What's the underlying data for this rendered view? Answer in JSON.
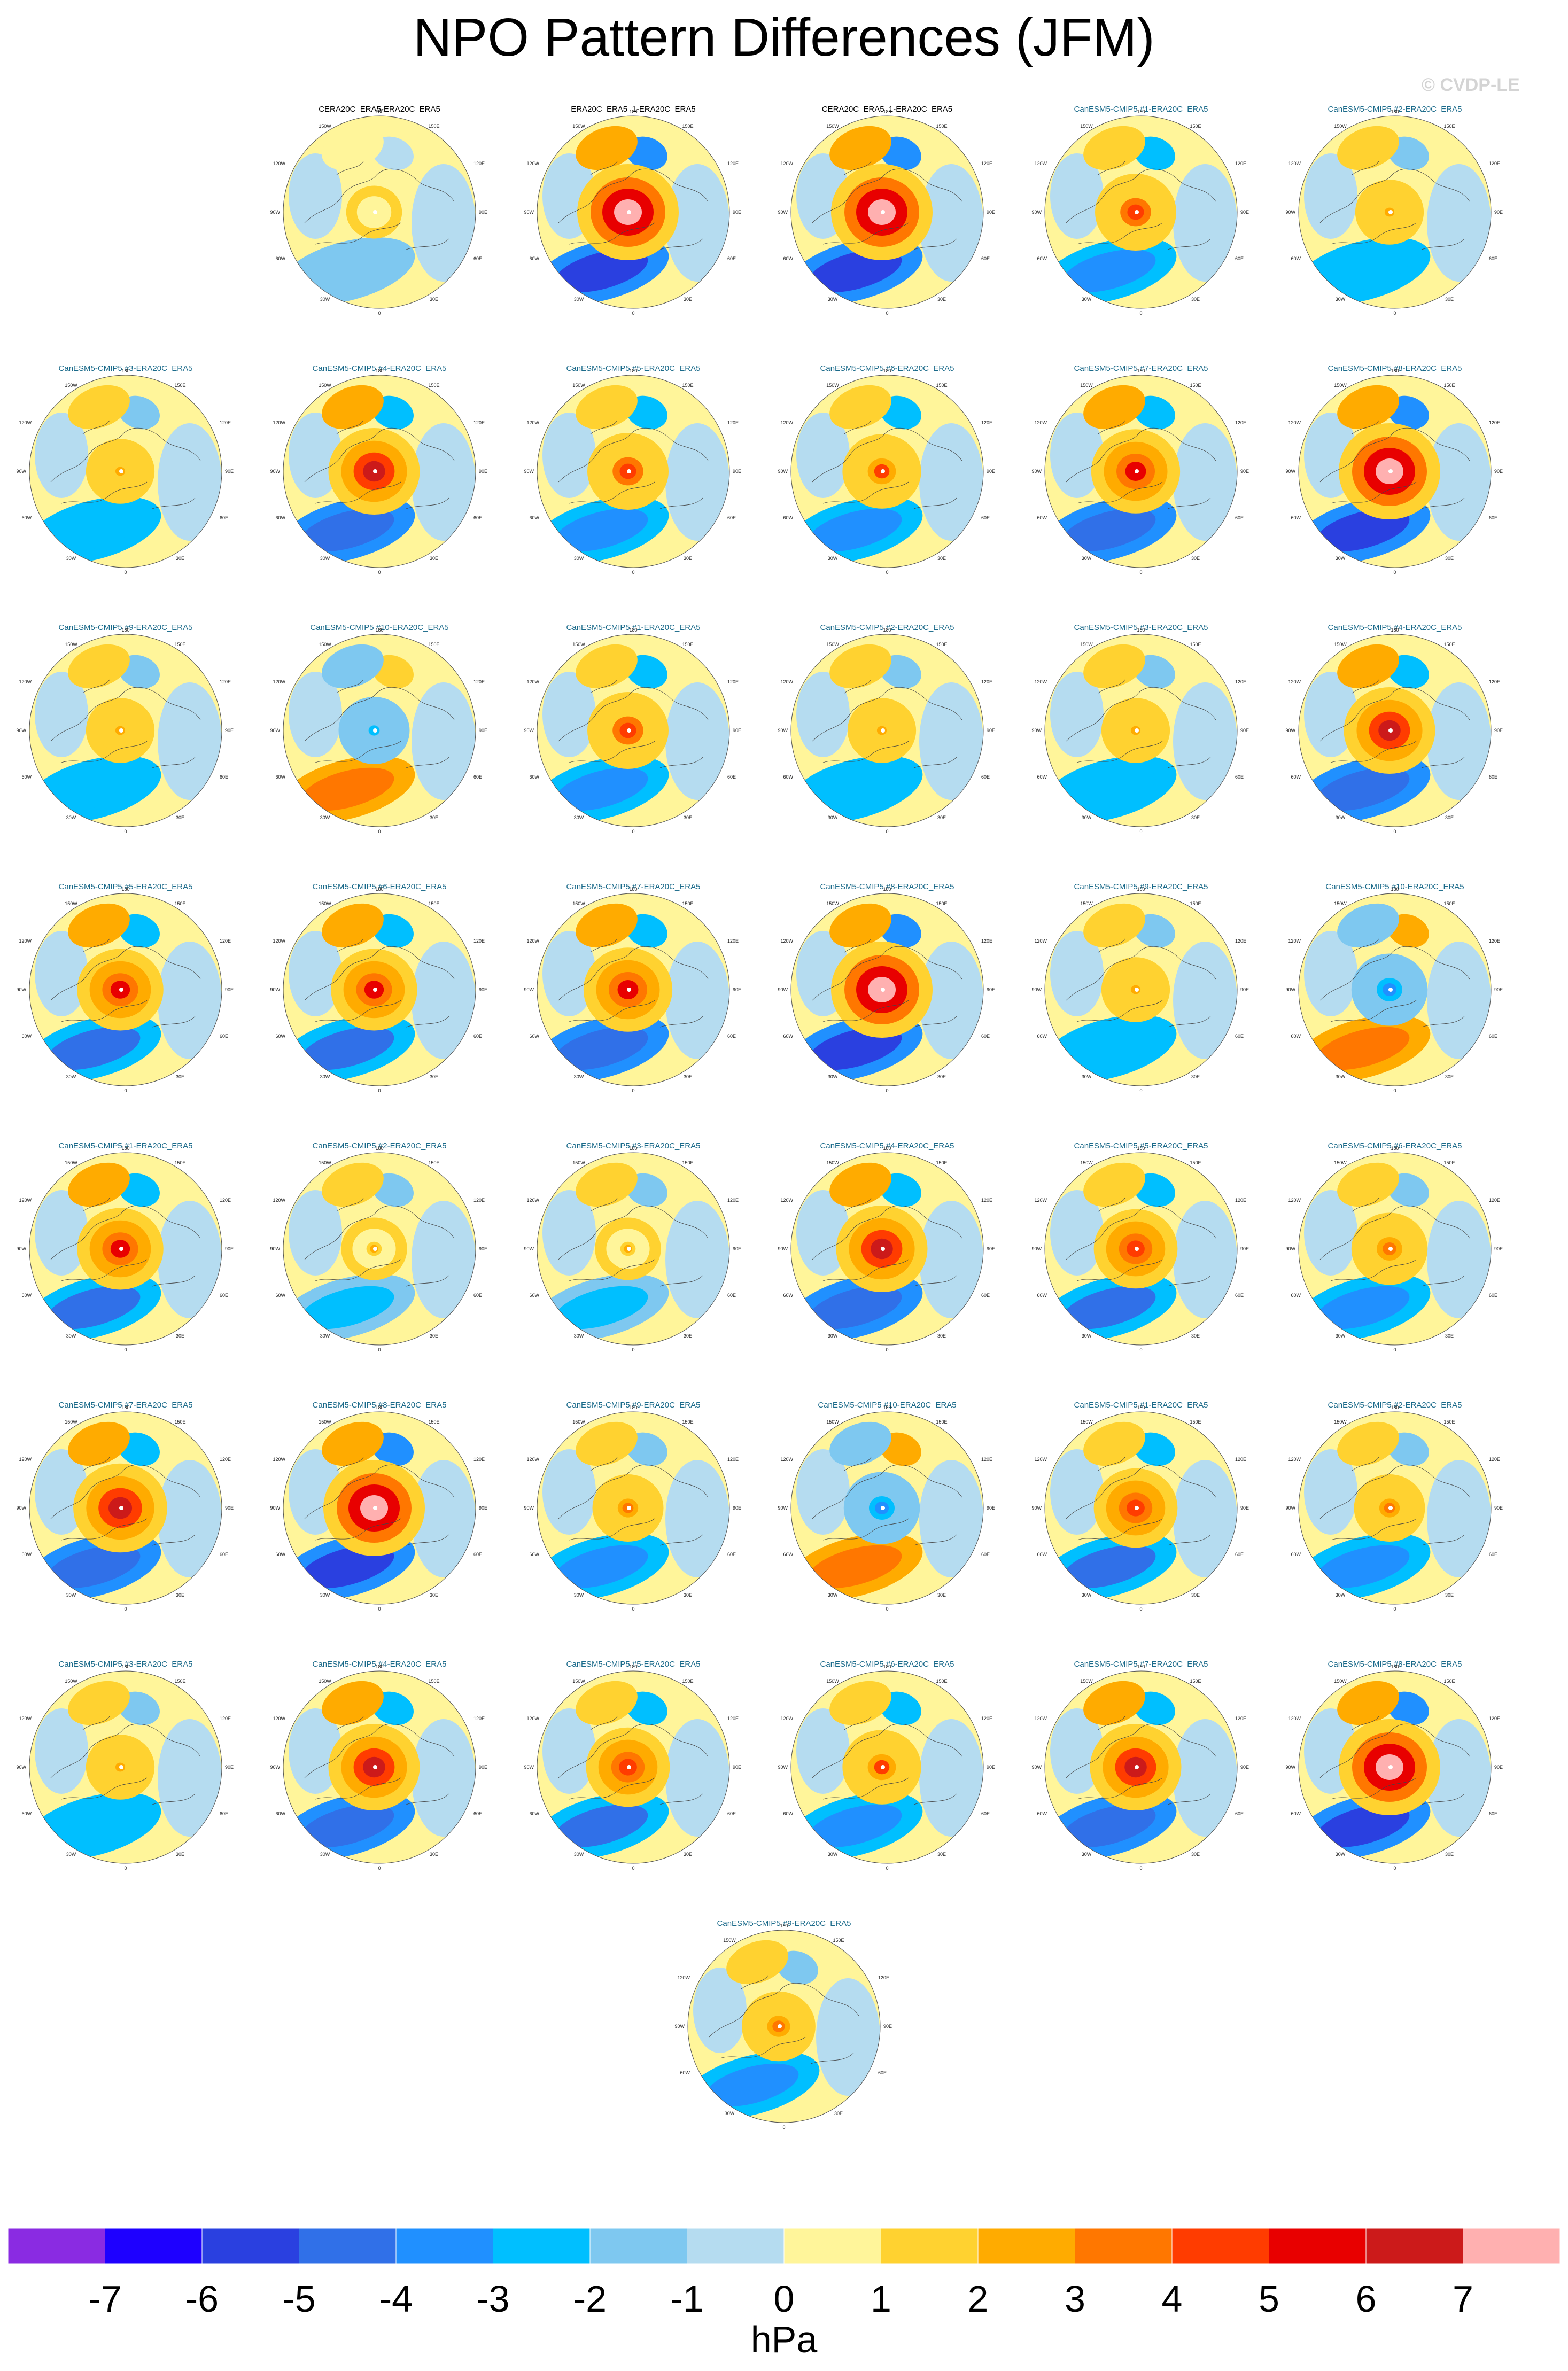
{
  "title": "NPO Pattern Differences (JFM)",
  "watermark": "© CVDP-LE",
  "colors": {
    "land_outline": "#444444",
    "reference_title": "#000000",
    "model_title": "#1a6a8a"
  },
  "chart_data": {
    "type": "heatmap",
    "projection": "polar stereographic (north pole)",
    "colorbar": {
      "ticks": [
        "-7",
        "-6",
        "-5",
        "-4",
        "-3",
        "-2",
        "-1",
        "0",
        "1",
        "2",
        "3",
        "4",
        "5",
        "6",
        "7"
      ],
      "units": "hPa",
      "colors": [
        "#8a2be2",
        "#1e00ff",
        "#2a40e0",
        "#3070e8",
        "#2090ff",
        "#00bfff",
        "#7ec8f0",
        "#b5dcf0",
        "#fff59a",
        "#ffd230",
        "#ffab00",
        "#ff7700",
        "#ff3c00",
        "#e80000",
        "#cc1a1a",
        "#ffb0b0"
      ]
    },
    "map_labels": {
      "top": "180",
      "top_left": "150W",
      "top_right": "150E",
      "upper_left": "120W",
      "upper_right": "120E",
      "left": "90W",
      "right": "90E",
      "lower_left": "60W",
      "lower_right": "60E",
      "bottom_left": "30W",
      "bottom_right": "30E",
      "bottom": "0"
    },
    "panels": [
      {
        "name": "CERA20C_ERA5-ERA20C_ERA5",
        "kind": "reference",
        "intensity": 0.1
      },
      {
        "name": "ERA20C_ERA5_1-ERA20C_ERA5",
        "kind": "reference",
        "intensity": 1.0
      },
      {
        "name": "CERA20C_ERA5_1-ERA20C_ERA5",
        "kind": "reference",
        "intensity": 1.0
      },
      {
        "name": "CanESM5-CMIP5 #1-ERA20C_ERA5",
        "kind": "model",
        "intensity": 0.6
      },
      {
        "name": "CanESM5-CMIP5 #2-ERA20C_ERA5",
        "kind": "model",
        "intensity": 0.35
      },
      {
        "name": "CanESM5-CMIP5 #3-ERA20C_ERA5",
        "kind": "model",
        "intensity": 0.35
      },
      {
        "name": "CanESM5-CMIP5 #4-ERA20C_ERA5",
        "kind": "model",
        "intensity": 0.8
      },
      {
        "name": "CanESM5-CMIP5 #5-ERA20C_ERA5",
        "kind": "model",
        "intensity": 0.6
      },
      {
        "name": "CanESM5-CMIP5 #6-ERA20C_ERA5",
        "kind": "model",
        "intensity": 0.55
      },
      {
        "name": "CanESM5-CMIP5 #7-ERA20C_ERA5",
        "kind": "model",
        "intensity": 0.75
      },
      {
        "name": "CanESM5-CMIP5 #8-ERA20C_ERA5",
        "kind": "model",
        "intensity": 1.0
      },
      {
        "name": "CanESM5-CMIP5 #9-ERA20C_ERA5",
        "kind": "model",
        "intensity": 0.35
      },
      {
        "name": "CanESM5-CMIP5 #10-ERA20C_ERA5",
        "kind": "model",
        "intensity": -0.4
      },
      {
        "name": "CanESM5-CMIP5 #1-ERA20C_ERA5",
        "kind": "model",
        "intensity": 0.6
      },
      {
        "name": "CanESM5-CMIP5 #2-ERA20C_ERA5",
        "kind": "model",
        "intensity": 0.35
      },
      {
        "name": "CanESM5-CMIP5 #3-ERA20C_ERA5",
        "kind": "model",
        "intensity": 0.35
      },
      {
        "name": "CanESM5-CMIP5 #4-ERA20C_ERA5",
        "kind": "model",
        "intensity": 0.8
      },
      {
        "name": "CanESM5-CMIP5 #5-ERA20C_ERA5",
        "kind": "model",
        "intensity": 0.7
      },
      {
        "name": "CanESM5-CMIP5 #6-ERA20C_ERA5",
        "kind": "model",
        "intensity": 0.7
      },
      {
        "name": "CanESM5-CMIP5 #7-ERA20C_ERA5",
        "kind": "model",
        "intensity": 0.75
      },
      {
        "name": "CanESM5-CMIP5 #8-ERA20C_ERA5",
        "kind": "model",
        "intensity": 1.0
      },
      {
        "name": "CanESM5-CMIP5 #9-ERA20C_ERA5",
        "kind": "model",
        "intensity": 0.35
      },
      {
        "name": "CanESM5-CMIP5 #10-ERA20C_ERA5",
        "kind": "model",
        "intensity": -0.5
      },
      {
        "name": "CanESM5-CMIP5 #1-ERA20C_ERA5",
        "kind": "model",
        "intensity": 0.7
      },
      {
        "name": "CanESM5-CMIP5 #2-ERA20C_ERA5",
        "kind": "model",
        "intensity": 0.3
      },
      {
        "name": "CanESM5-CMIP5 #3-ERA20C_ERA5",
        "kind": "model",
        "intensity": 0.3
      },
      {
        "name": "CanESM5-CMIP5 #4-ERA20C_ERA5",
        "kind": "model",
        "intensity": 0.8
      },
      {
        "name": "CanESM5-CMIP5 #5-ERA20C_ERA5",
        "kind": "model",
        "intensity": 0.65
      },
      {
        "name": "CanESM5-CMIP5 #6-ERA20C_ERA5",
        "kind": "model",
        "intensity": 0.5
      },
      {
        "name": "CanESM5-CMIP5 #7-ERA20C_ERA5",
        "kind": "model",
        "intensity": 0.85
      },
      {
        "name": "CanESM5-CMIP5 #8-ERA20C_ERA5",
        "kind": "model",
        "intensity": 1.0
      },
      {
        "name": "CanESM5-CMIP5 #9-ERA20C_ERA5",
        "kind": "model",
        "intensity": 0.4
      },
      {
        "name": "CanESM5-CMIP5 #10-ERA20C_ERA5",
        "kind": "model",
        "intensity": -0.5
      },
      {
        "name": "CanESM5-CMIP5 #1-ERA20C_ERA5",
        "kind": "model",
        "intensity": 0.65
      },
      {
        "name": "CanESM5-CMIP5 #2-ERA20C_ERA5",
        "kind": "model",
        "intensity": 0.4
      },
      {
        "name": "CanESM5-CMIP5 #3-ERA20C_ERA5",
        "kind": "model",
        "intensity": 0.35
      },
      {
        "name": "CanESM5-CMIP5 #4-ERA20C_ERA5",
        "kind": "model",
        "intensity": 0.8
      },
      {
        "name": "CanESM5-CMIP5 #5-ERA20C_ERA5",
        "kind": "model",
        "intensity": 0.65
      },
      {
        "name": "CanESM5-CMIP5 #6-ERA20C_ERA5",
        "kind": "model",
        "intensity": 0.55
      },
      {
        "name": "CanESM5-CMIP5 #7-ERA20C_ERA5",
        "kind": "model",
        "intensity": 0.8
      },
      {
        "name": "CanESM5-CMIP5 #8-ERA20C_ERA5",
        "kind": "model",
        "intensity": 1.0
      },
      {
        "name": "CanESM5-CMIP5 #9-ERA20C_ERA5",
        "kind": "model",
        "intensity": 0.45
      }
    ]
  }
}
